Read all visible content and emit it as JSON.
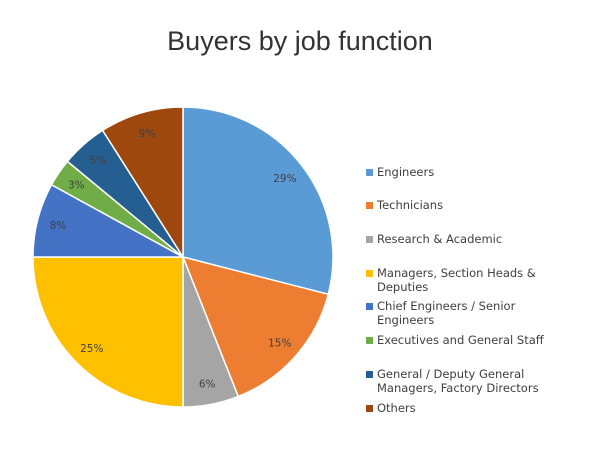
{
  "chart_data": {
    "type": "pie",
    "title": "Buyers by job function",
    "categories": [
      "Engineers",
      "Technicians",
      "Research & Academic",
      "Managers, Section Heads & Deputies",
      "Chief Engineers / Senior Engineers",
      "Executives and General Staff",
      "General / Deputy General Managers, Factory Directors",
      "Others"
    ],
    "values": [
      29,
      15,
      6,
      25,
      8,
      3,
      5,
      9
    ],
    "data_labels": [
      "29%",
      "15%",
      "6%",
      "25%",
      "8%",
      "3%",
      "5%",
      "9%"
    ],
    "colors": [
      "#5B9BD5",
      "#ED7D31",
      "#A5A5A5",
      "#FFC000",
      "#4472C4",
      "#70AD47",
      "#255E91",
      "#9E480E"
    ],
    "legend_placement": "right"
  }
}
